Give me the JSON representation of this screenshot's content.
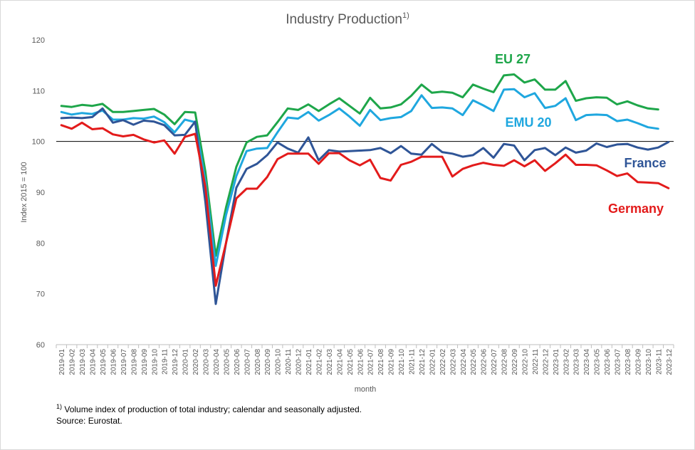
{
  "chart_data": {
    "type": "line",
    "title": "Industry Production",
    "title_superscript": "1)",
    "xlabel": "month",
    "ylabel": "Index 2015 = 100",
    "ylim": [
      60,
      120
    ],
    "yticks": [
      60,
      70,
      80,
      90,
      100,
      110,
      120
    ],
    "grid": false,
    "reference_line": 100,
    "x": [
      "2019-01",
      "2019-02",
      "2019-03",
      "2019-04",
      "2019-05",
      "2019-06",
      "2019-07",
      "2019-08",
      "2019-09",
      "2019-10",
      "2019-11",
      "2019-12",
      "2020-01",
      "2020-02",
      "2020-03",
      "2020-04",
      "2020-05",
      "2020-06",
      "2020-07",
      "2020-08",
      "2020-09",
      "2020-10",
      "2020-11",
      "2020-12",
      "2021-01",
      "2021-02",
      "2021-03",
      "2021-04",
      "2021-05",
      "2021-06",
      "2021-07",
      "2021-08",
      "2021-09",
      "2021-10",
      "2021-11",
      "2021-12",
      "2022-01",
      "2022-02",
      "2022-03",
      "2022-04",
      "2022-05",
      "2022-06",
      "2022-07",
      "2022-08",
      "2022-09",
      "2022-10",
      "2022-11",
      "2022-12",
      "2023-01",
      "2023-02",
      "2023-03",
      "2023-04",
      "2023-05",
      "2023-06",
      "2023-07",
      "2023-08",
      "2023-09",
      "2023-10",
      "2023-11",
      "2023-12"
    ],
    "series": [
      {
        "name": "EU 27",
        "color": "#1ea64a",
        "values": [
          107.0,
          106.8,
          107.2,
          107.0,
          107.4,
          105.8,
          105.8,
          106.0,
          106.2,
          106.4,
          105.3,
          103.4,
          105.8,
          105.7,
          94.0,
          77.5,
          87.0,
          95.0,
          99.8,
          100.9,
          101.2,
          103.8,
          106.5,
          106.2,
          107.3,
          106.0,
          107.3,
          108.5,
          107.0,
          105.5,
          108.6,
          106.5,
          106.7,
          107.3,
          109.0,
          111.2,
          109.6,
          109.8,
          109.6,
          108.7,
          111.2,
          110.4,
          109.7,
          113.0,
          113.2,
          111.6,
          112.2,
          110.2,
          110.2,
          111.9,
          108.0,
          108.5,
          108.7,
          108.6,
          107.3,
          107.9,
          107.1,
          106.5,
          106.3,
          null
        ]
      },
      {
        "name": "EMU 20",
        "color": "#1fa7df",
        "values": [
          105.8,
          105.3,
          105.6,
          105.4,
          106.1,
          104.3,
          104.3,
          104.6,
          104.5,
          104.9,
          103.8,
          101.8,
          104.3,
          103.8,
          92.0,
          75.5,
          85.5,
          93.2,
          98.1,
          98.6,
          98.7,
          101.8,
          104.7,
          104.5,
          105.8,
          104.1,
          105.2,
          106.5,
          104.9,
          103.1,
          106.2,
          104.2,
          104.6,
          104.8,
          106.0,
          109.1,
          106.6,
          106.7,
          106.5,
          105.2,
          108.1,
          107.1,
          106.0,
          110.2,
          110.3,
          108.7,
          109.5,
          106.6,
          107.0,
          108.5,
          104.2,
          105.2,
          105.3,
          105.2,
          104.0,
          104.3,
          103.6,
          102.8,
          102.5,
          null
        ]
      },
      {
        "name": "France",
        "color": "#2f5597",
        "values": [
          104.6,
          104.7,
          104.6,
          104.8,
          106.5,
          103.7,
          104.2,
          103.3,
          104.1,
          103.9,
          103.2,
          101.2,
          101.3,
          103.9,
          88.0,
          68.0,
          80.0,
          90.9,
          94.6,
          95.6,
          97.3,
          99.8,
          98.6,
          97.8,
          100.8,
          96.3,
          98.3,
          98.0,
          98.1,
          98.2,
          98.3,
          98.7,
          97.7,
          99.1,
          97.6,
          97.4,
          99.5,
          97.9,
          97.6,
          97.0,
          97.3,
          98.7,
          96.8,
          99.5,
          99.2,
          96.3,
          98.3,
          98.7,
          97.3,
          98.8,
          97.8,
          98.2,
          99.6,
          98.9,
          99.4,
          99.5,
          98.8,
          98.4,
          98.8,
          99.9
        ]
      },
      {
        "name": "Germany",
        "color": "#e31b1b",
        "values": [
          103.2,
          102.5,
          103.7,
          102.4,
          102.6,
          101.4,
          101.0,
          101.3,
          100.4,
          99.8,
          100.2,
          97.6,
          100.9,
          101.5,
          91.0,
          71.6,
          80.0,
          88.8,
          90.7,
          90.7,
          93.0,
          96.5,
          97.6,
          97.6,
          97.6,
          95.6,
          97.7,
          97.7,
          96.3,
          95.3,
          96.4,
          92.8,
          92.3,
          95.4,
          96.0,
          97.0,
          97.0,
          97.0,
          93.1,
          94.6,
          95.3,
          95.8,
          95.4,
          95.2,
          96.3,
          95.1,
          96.3,
          94.2,
          95.7,
          97.4,
          95.4,
          95.4,
          95.3,
          94.3,
          93.2,
          93.7,
          92.0,
          91.9,
          91.8,
          90.8
        ]
      }
    ]
  },
  "labels": {
    "eu27": "EU 27",
    "emu20": "EMU 20",
    "france": "France",
    "germany": "Germany"
  },
  "footnote": {
    "marker": "1)",
    "line1": "Volume index of production of total industry; calendar and seasonally adjusted.",
    "line2": "Source: Eurostat."
  }
}
